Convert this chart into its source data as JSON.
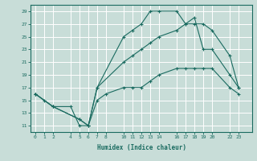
{
  "xlabel": "Humidex (Indice chaleur)",
  "bg_color": "#c8ddd8",
  "grid_color": "#ffffff",
  "line_color": "#1a6b60",
  "line1_x": [
    0,
    1,
    2,
    4,
    5,
    6,
    7,
    10,
    11,
    12,
    13,
    14,
    16,
    17,
    18,
    19,
    20,
    22,
    23
  ],
  "line1_y": [
    16,
    15,
    14,
    14,
    11,
    11,
    17,
    25,
    26,
    27,
    29,
    29,
    29,
    27,
    28,
    23,
    23,
    19,
    17
  ],
  "line2_x": [
    0,
    2,
    5,
    6,
    7,
    10,
    11,
    12,
    13,
    14,
    16,
    17,
    18,
    19,
    20,
    22,
    23
  ],
  "line2_y": [
    16,
    14,
    12,
    11,
    17,
    21,
    22,
    23,
    24,
    25,
    26,
    27,
    27,
    27,
    26,
    22,
    17
  ],
  "line3_x": [
    0,
    2,
    5,
    6,
    7,
    8,
    10,
    11,
    12,
    13,
    14,
    16,
    17,
    18,
    19,
    20,
    22,
    23
  ],
  "line3_y": [
    16,
    14,
    12,
    11,
    15,
    16,
    17,
    17,
    17,
    18,
    19,
    20,
    20,
    20,
    20,
    20,
    17,
    16
  ],
  "xticks": [
    0,
    1,
    2,
    4,
    5,
    6,
    7,
    8,
    10,
    11,
    12,
    13,
    14,
    16,
    17,
    18,
    19,
    20,
    22,
    23
  ],
  "yticks": [
    11,
    13,
    15,
    17,
    19,
    21,
    23,
    25,
    27,
    29
  ],
  "ylim": [
    10,
    30
  ],
  "xlim": [
    -0.5,
    24.5
  ]
}
